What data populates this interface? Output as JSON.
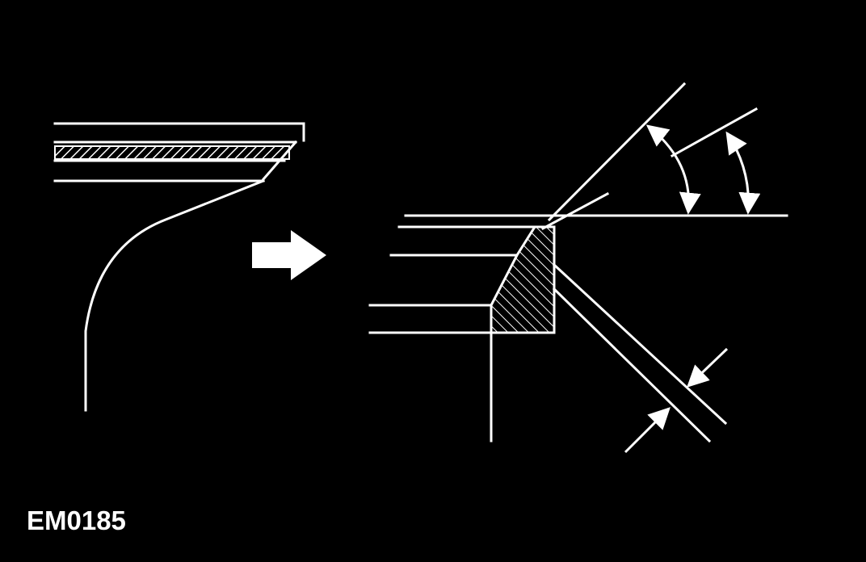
{
  "figure": {
    "code": "EM0185"
  },
  "colors": {
    "background": "#000000",
    "line": "#ffffff"
  },
  "icons": {
    "transition": "right-arrow-icon",
    "dimension": "dimension-arrow-icon"
  }
}
